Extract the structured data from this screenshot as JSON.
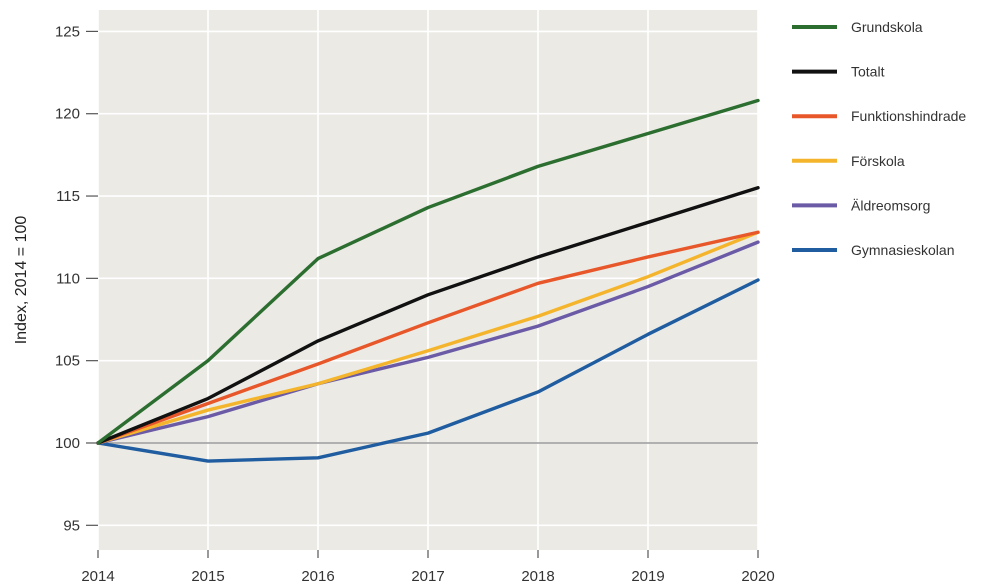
{
  "chart_data": {
    "type": "line",
    "title": "",
    "xlabel": "",
    "ylabel": "Index, 2014 = 100",
    "x": [
      "2014",
      "2015",
      "2016",
      "2017",
      "2018",
      "2019",
      "2020"
    ],
    "xlim": [
      2014,
      2020
    ],
    "ylim": [
      93.5,
      126.3
    ],
    "yticks": [
      "95",
      "100",
      "105",
      "110",
      "115",
      "120",
      "125"
    ],
    "grid": true,
    "legend_position": "right",
    "reference_line": 100,
    "series": [
      {
        "name": "Grundskola",
        "color": "#2c6e2f",
        "values": [
          100,
          105.0,
          111.2,
          114.3,
          116.8,
          118.8,
          120.8
        ]
      },
      {
        "name": "Totalt",
        "color": "#111111",
        "values": [
          100,
          102.7,
          106.2,
          109.0,
          111.3,
          113.4,
          115.5
        ]
      },
      {
        "name": "Funktionshindrade",
        "color": "#e8572a",
        "values": [
          100,
          102.4,
          104.8,
          107.3,
          109.7,
          111.3,
          112.8
        ]
      },
      {
        "name": "Förskola",
        "color": "#f4b52d",
        "values": [
          100,
          102.0,
          103.6,
          105.6,
          107.7,
          110.1,
          112.8
        ]
      },
      {
        "name": "Äldreomsorg",
        "color": "#6b5aa6",
        "values": [
          100,
          101.6,
          103.6,
          105.2,
          107.1,
          109.5,
          112.2
        ]
      },
      {
        "name": "Gymnasieskolan",
        "color": "#1f5da0",
        "values": [
          100,
          98.9,
          99.1,
          100.6,
          103.1,
          106.6,
          109.9
        ]
      }
    ]
  }
}
